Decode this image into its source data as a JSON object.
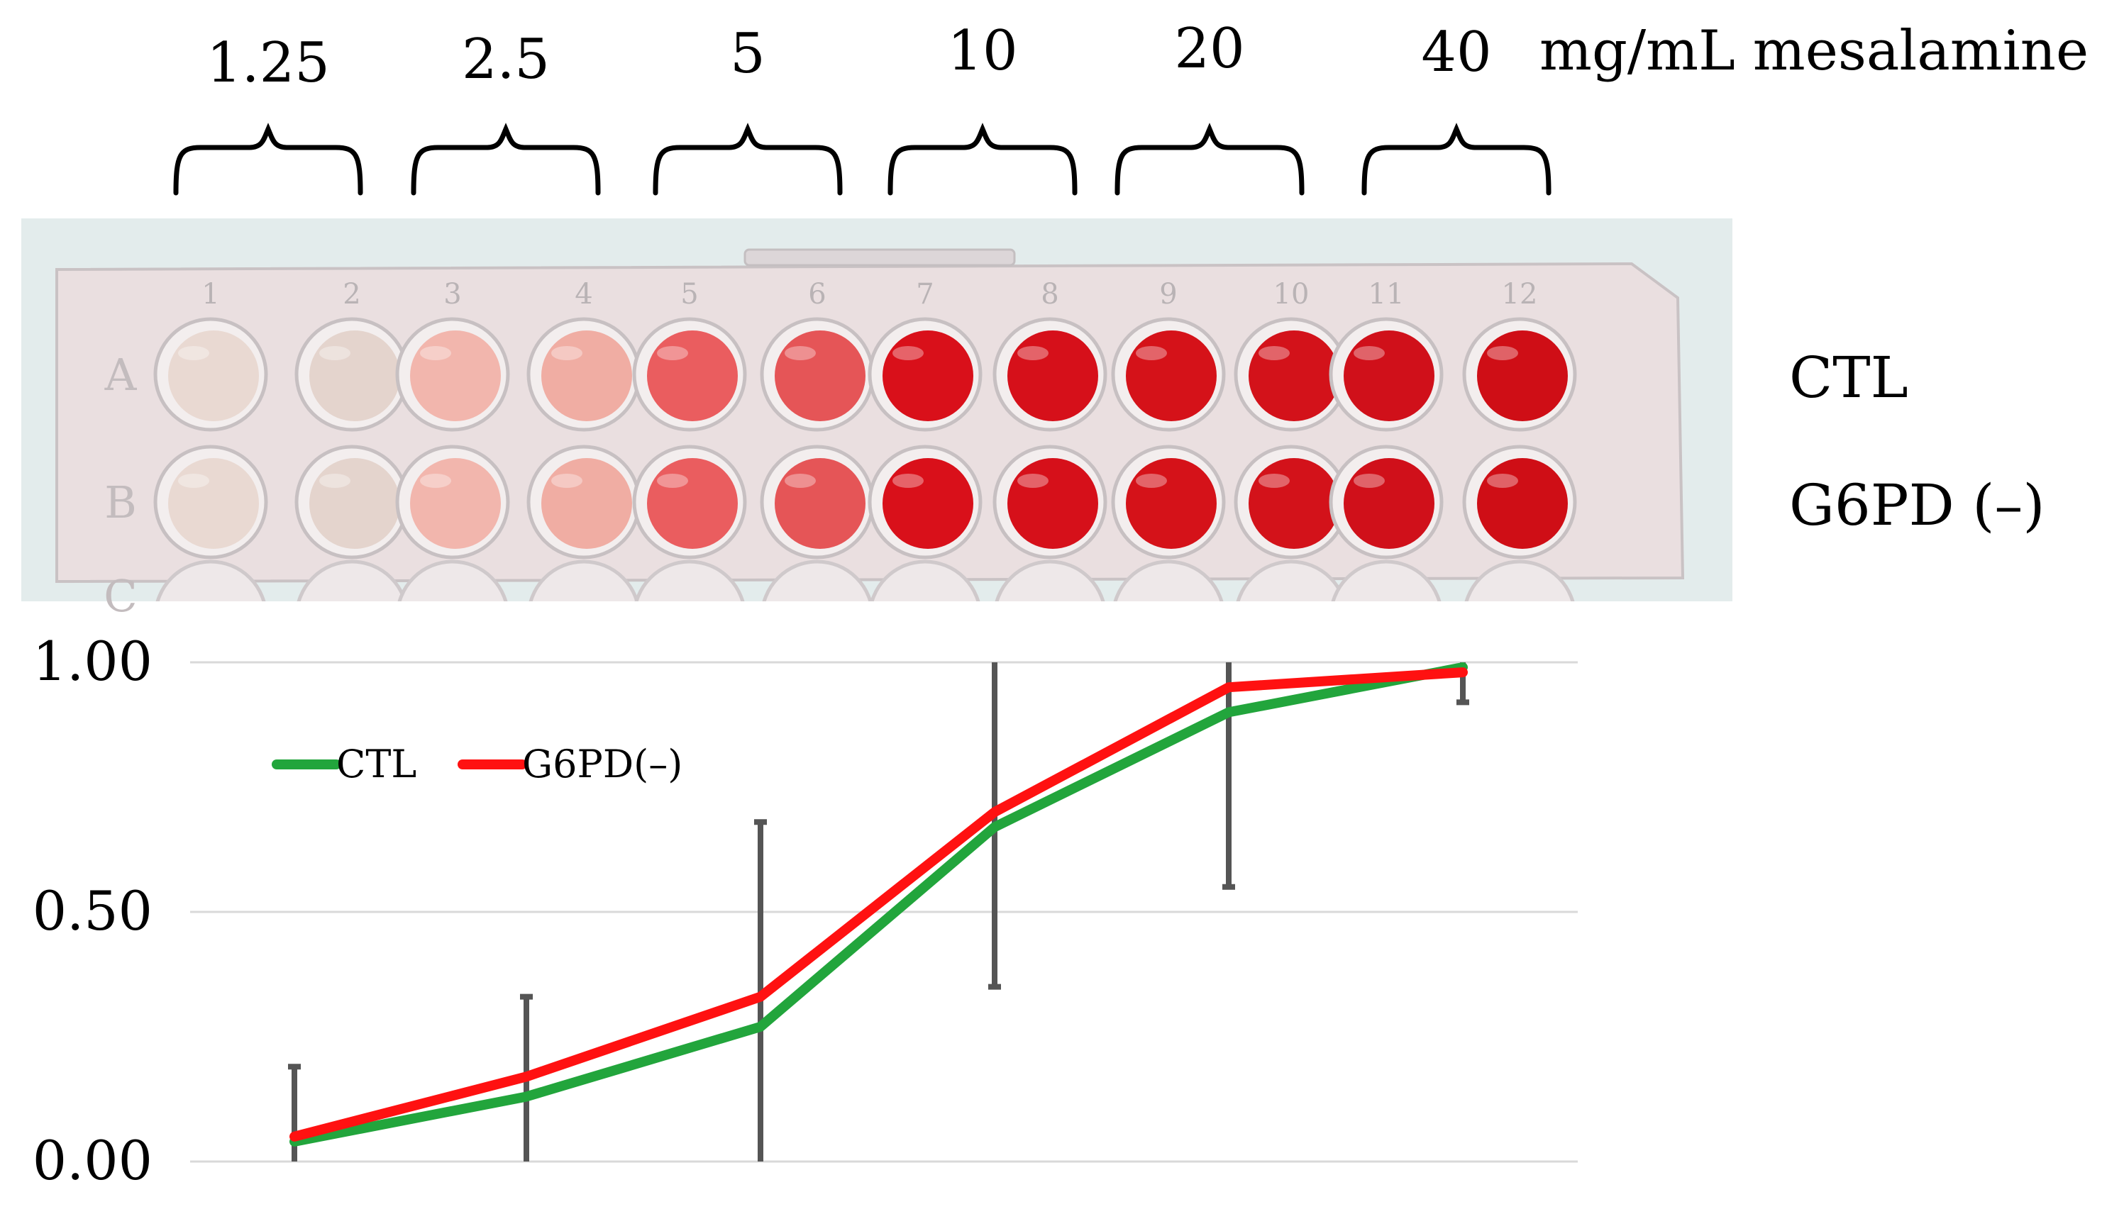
{
  "top_labels": {
    "concentrations": [
      "1.25",
      "2.5",
      "5",
      "10",
      "20",
      "40"
    ],
    "unit": "mg/mL mesalamine"
  },
  "plate": {
    "column_numbers": [
      "1",
      "2",
      "3",
      "4",
      "5",
      "6",
      "7",
      "8",
      "9",
      "10",
      "11",
      "12"
    ],
    "row_letters": [
      "A",
      "B",
      "C"
    ],
    "row_labels": [
      "CTL",
      "G6PD (–)"
    ],
    "well_colors": [
      "#e9d9d2",
      "#e4d4cd",
      "#f2b6ad",
      "#f0ada3",
      "#ea5d5f",
      "#e55557",
      "#d9101a",
      "#d6101a",
      "#d51219",
      "#d3121a",
      "#d0101a",
      "#cf0e16"
    ],
    "colors": {
      "plate_bg": "#e3ecec",
      "plate_body": "#eadfe0"
    }
  },
  "chart_data": {
    "type": "line",
    "categories": [
      "1.25",
      "2.5",
      "5",
      "10",
      "20",
      "40"
    ],
    "series": [
      {
        "name": "CTL",
        "values": [
          0.04,
          0.13,
          0.27,
          0.67,
          0.9,
          0.99
        ],
        "color": "#22a53c"
      },
      {
        "name": "G6PD(–)",
        "values": [
          0.05,
          0.17,
          0.33,
          0.7,
          0.95,
          0.98
        ],
        "color": "#ff1111"
      }
    ],
    "error_bars": [
      {
        "low": 0.0,
        "high": 0.19
      },
      {
        "low": 0.0,
        "high": 0.33
      },
      {
        "low": 0.0,
        "high": 0.68
      },
      {
        "low": 0.35,
        "high": 1.0
      },
      {
        "low": 0.55,
        "high": 1.0
      },
      {
        "low": 0.92,
        "high": 1.0
      }
    ],
    "yticks": [
      "0.00",
      "0.50",
      "1.00"
    ],
    "ylim": [
      0,
      1
    ],
    "grid": true,
    "legend_position": "top-left",
    "error_bar_color": "#555555"
  }
}
